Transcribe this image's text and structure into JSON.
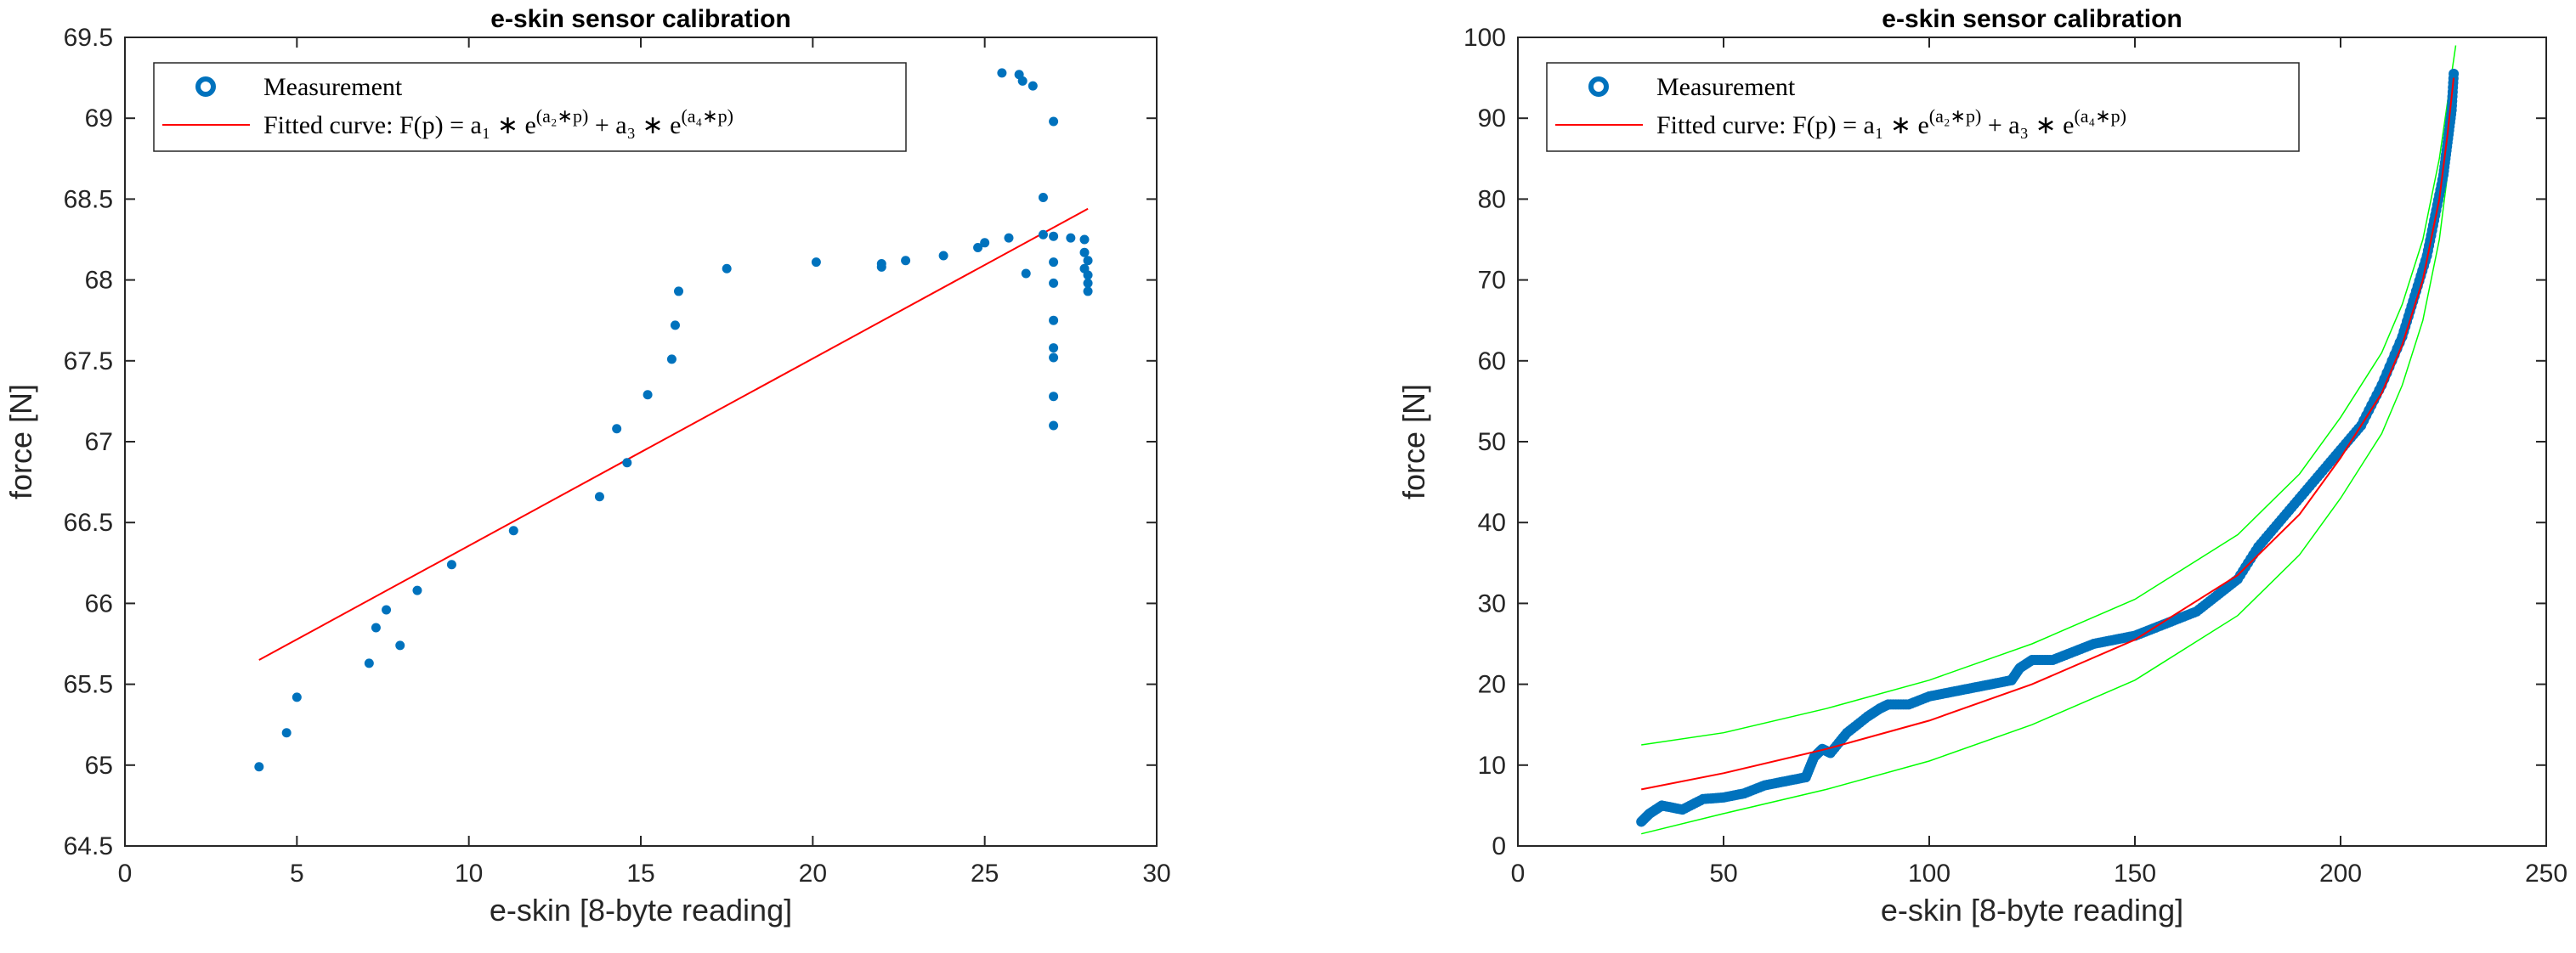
{
  "chart_data": [
    {
      "type": "scatter",
      "title": "e-skin sensor calibration",
      "xlabel": "e-skin [8-byte reading]",
      "ylabel": "force [N]",
      "xlim": [
        0,
        30
      ],
      "ylim": [
        64.5,
        69.5
      ],
      "xticks": [
        "0",
        "5",
        "10",
        "15",
        "20",
        "25",
        "30"
      ],
      "yticks": [
        "64.5",
        "65",
        "65.5",
        "66",
        "66.5",
        "67",
        "67.5",
        "68",
        "68.5",
        "69",
        "69.5"
      ],
      "colors": {
        "measurement": "#0072BD",
        "fit": "#FF0000"
      },
      "legend": {
        "position": "top-left",
        "measurement_label": "Measurement",
        "fit_label": "Fitted curve: F(p) = a₁ ∗ e^(a₂∗p) + a₃ ∗ e^(a₄∗p)"
      },
      "series": [
        {
          "name": "Measurement",
          "points": [
            [
              3.9,
              64.99
            ],
            [
              4.7,
              65.2
            ],
            [
              5.0,
              65.42
            ],
            [
              7.1,
              65.63
            ],
            [
              7.3,
              65.85
            ],
            [
              7.6,
              65.96
            ],
            [
              8.0,
              65.74
            ],
            [
              8.5,
              66.08
            ],
            [
              9.5,
              66.24
            ],
            [
              11.3,
              66.45
            ],
            [
              13.8,
              66.66
            ],
            [
              14.3,
              67.08
            ],
            [
              14.6,
              66.87
            ],
            [
              15.2,
              67.29
            ],
            [
              15.9,
              67.51
            ],
            [
              16.0,
              67.72
            ],
            [
              16.1,
              67.93
            ],
            [
              17.5,
              68.07
            ],
            [
              20.1,
              68.11
            ],
            [
              22.0,
              68.08
            ],
            [
              22.0,
              68.1
            ],
            [
              22.7,
              68.12
            ],
            [
              23.8,
              68.15
            ],
            [
              24.8,
              68.2
            ],
            [
              25.0,
              68.23
            ],
            [
              25.5,
              69.28
            ],
            [
              25.7,
              68.26
            ],
            [
              26.0,
              69.27
            ],
            [
              26.1,
              69.23
            ],
            [
              26.2,
              68.04
            ],
            [
              26.4,
              69.2
            ],
            [
              26.7,
              68.51
            ],
            [
              26.7,
              68.28
            ],
            [
              27.0,
              68.98
            ],
            [
              27.0,
              68.27
            ],
            [
              27.0,
              68.11
            ],
            [
              27.0,
              67.98
            ],
            [
              27.0,
              67.75
            ],
            [
              27.0,
              67.58
            ],
            [
              27.0,
              67.52
            ],
            [
              27.0,
              67.28
            ],
            [
              27.0,
              67.1
            ],
            [
              27.5,
              68.26
            ],
            [
              27.9,
              68.25
            ],
            [
              27.9,
              68.17
            ],
            [
              28.0,
              68.12
            ],
            [
              27.9,
              68.07
            ],
            [
              28.0,
              68.03
            ],
            [
              28.0,
              67.98
            ],
            [
              28.0,
              67.93
            ]
          ]
        },
        {
          "name": "Fitted curve",
          "points": [
            [
              3.9,
              65.65
            ],
            [
              28.0,
              68.44
            ]
          ]
        }
      ]
    },
    {
      "type": "scatter",
      "title": "e-skin sensor calibration",
      "xlabel": "e-skin [8-byte reading]",
      "ylabel": "force [N]",
      "xlim": [
        0,
        250
      ],
      "ylim": [
        0,
        100
      ],
      "xticks": [
        "0",
        "50",
        "100",
        "150",
        "200",
        "250"
      ],
      "yticks": [
        "0",
        "10",
        "20",
        "30",
        "40",
        "50",
        "60",
        "70",
        "80",
        "90",
        "100"
      ],
      "colors": {
        "measurement": "#0072BD",
        "fit": "#FF0000",
        "bounds": "#00FF00"
      },
      "legend": {
        "position": "top-left",
        "measurement_label": "Measurement",
        "fit_label": "Fitted curve: F(p) = a₁ ∗ e^(a₂∗p) + a₃ ∗ e^(a₄∗p)"
      },
      "series": [
        {
          "name": "Measurement",
          "points": [
            [
              30,
              3.0
            ],
            [
              32,
              4.0
            ],
            [
              35,
              5.0
            ],
            [
              40,
              4.5
            ],
            [
              45,
              5.8
            ],
            [
              50,
              6.0
            ],
            [
              55,
              6.5
            ],
            [
              60,
              7.5
            ],
            [
              65,
              8.0
            ],
            [
              70,
              8.5
            ],
            [
              72,
              11.0
            ],
            [
              74,
              12.0
            ],
            [
              76,
              11.5
            ],
            [
              80,
              14.0
            ],
            [
              85,
              16.0
            ],
            [
              88,
              17.0
            ],
            [
              90,
              17.5
            ],
            [
              95,
              17.5
            ],
            [
              100,
              18.5
            ],
            [
              105,
              19.0
            ],
            [
              110,
              19.5
            ],
            [
              115,
              20.0
            ],
            [
              120,
              20.5
            ],
            [
              122,
              22.0
            ],
            [
              125,
              23.0
            ],
            [
              130,
              23.0
            ],
            [
              135,
              24.0
            ],
            [
              140,
              25.0
            ],
            [
              145,
              25.5
            ],
            [
              150,
              26.0
            ],
            [
              155,
              27.0
            ],
            [
              160,
              28.0
            ],
            [
              165,
              29.0
            ],
            [
              170,
              31.0
            ],
            [
              175,
              33.0
            ],
            [
              180,
              37.0
            ],
            [
              185,
              40.0
            ],
            [
              190,
              43.0
            ],
            [
              195,
              46.0
            ],
            [
              200,
              49.0
            ],
            [
              205,
              52.0
            ],
            [
              210,
              57.0
            ],
            [
              215,
              63.0
            ],
            [
              218,
              68.0
            ],
            [
              221,
              73.0
            ],
            [
              223,
              78.0
            ],
            [
              225,
              83.0
            ],
            [
              226,
              87.0
            ],
            [
              227,
              91.0
            ],
            [
              227.5,
              95.5
            ]
          ]
        },
        {
          "name": "Fitted curve",
          "points": [
            [
              30,
              7.0
            ],
            [
              50,
              9.0
            ],
            [
              75,
              12.0
            ],
            [
              100,
              15.5
            ],
            [
              125,
              20.0
            ],
            [
              150,
              25.5
            ],
            [
              175,
              33.5
            ],
            [
              190,
              41.0
            ],
            [
              200,
              48.0
            ],
            [
              210,
              56.0
            ],
            [
              215,
              62.0
            ],
            [
              220,
              70.0
            ],
            [
              224,
              80.0
            ],
            [
              226,
              88.0
            ],
            [
              227.5,
              95.0
            ]
          ]
        },
        {
          "name": "Upper bound",
          "points": [
            [
              30,
              12.5
            ],
            [
              50,
              14.0
            ],
            [
              75,
              17.0
            ],
            [
              100,
              20.5
            ],
            [
              125,
              25.0
            ],
            [
              150,
              30.5
            ],
            [
              175,
              38.5
            ],
            [
              190,
              46.0
            ],
            [
              200,
              53.0
            ],
            [
              210,
              61.0
            ],
            [
              215,
              67.0
            ],
            [
              220,
              75.0
            ],
            [
              224,
              85.0
            ],
            [
              226,
              92.0
            ],
            [
              228,
              99.0
            ]
          ]
        },
        {
          "name": "Lower bound",
          "points": [
            [
              30,
              1.5
            ],
            [
              50,
              4.0
            ],
            [
              75,
              7.0
            ],
            [
              100,
              10.5
            ],
            [
              125,
              15.0
            ],
            [
              150,
              20.5
            ],
            [
              175,
              28.5
            ],
            [
              190,
              36.0
            ],
            [
              200,
              43.0
            ],
            [
              210,
              51.0
            ],
            [
              215,
              57.0
            ],
            [
              220,
              65.0
            ],
            [
              224,
              75.0
            ],
            [
              226,
              83.0
            ],
            [
              227.5,
              91.0
            ]
          ]
        }
      ]
    }
  ]
}
